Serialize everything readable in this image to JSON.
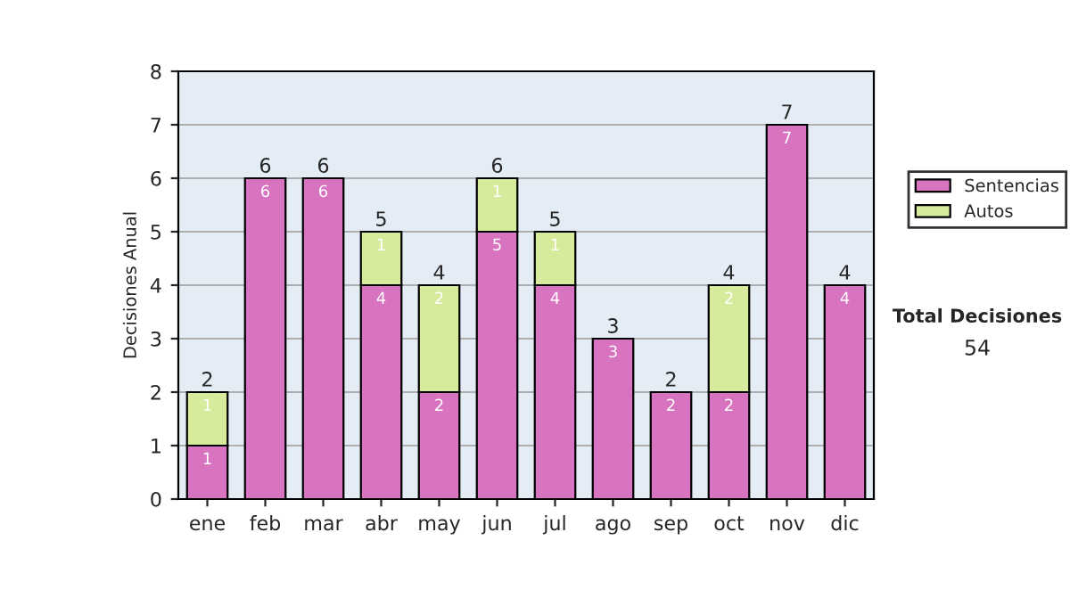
{
  "chart_data": {
    "type": "bar",
    "stacked": true,
    "ylabel": "Decisiones Anual",
    "categories": [
      "ene",
      "feb",
      "mar",
      "abr",
      "may",
      "jun",
      "jul",
      "ago",
      "sep",
      "oct",
      "nov",
      "dic"
    ],
    "series": [
      {
        "name": "Sentencias",
        "color": "#d873c0",
        "values": [
          1,
          6,
          6,
          4,
          2,
          5,
          4,
          3,
          2,
          2,
          7,
          4
        ],
        "value_labels": [
          "1",
          "6",
          "6",
          "4",
          "2",
          "5",
          "4",
          "3",
          "2",
          "2",
          "7",
          "4"
        ]
      },
      {
        "name": "Autos",
        "color": "#d6eb9c",
        "values": [
          1,
          null,
          null,
          1,
          2,
          1,
          1,
          null,
          null,
          2,
          null,
          null
        ],
        "value_labels": [
          "1",
          null,
          null,
          "1",
          "2",
          "1",
          "1",
          null,
          null,
          "2",
          null,
          null
        ]
      }
    ],
    "totals": [
      "2",
      "6",
      "6",
      "5",
      "4",
      "6",
      "5",
      "3",
      "2",
      "4",
      "7",
      "4"
    ],
    "ylim": [
      0,
      8
    ],
    "yticks": [
      0,
      1,
      2,
      3,
      4,
      5,
      6,
      7,
      8
    ],
    "grid": "y",
    "legend": "right",
    "annotations": [
      "Total Decisiones",
      "54"
    ]
  }
}
